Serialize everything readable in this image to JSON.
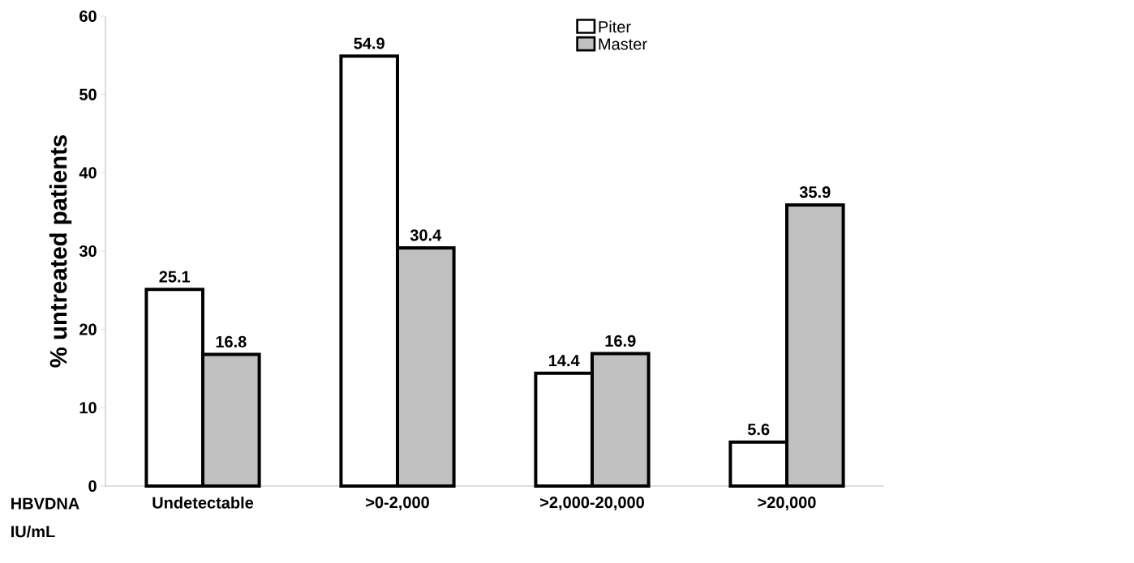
{
  "chart_data": {
    "type": "bar",
    "ylabel": "% untreated  patients",
    "xlabel": "HBVDNA IU/mL",
    "categories": [
      "Undetectable",
      ">0-2,000",
      ">2,000-20,000",
      ">20,000"
    ],
    "series": [
      {
        "name": "Piter",
        "color": "#ffffff",
        "values": [
          25.1,
          54.9,
          14.4,
          5.6
        ]
      },
      {
        "name": "Master",
        "color": "#c0c0c0",
        "values": [
          16.8,
          30.4,
          16.9,
          35.9
        ]
      }
    ],
    "ylim": [
      0,
      60
    ],
    "yticks": [
      0,
      10,
      20,
      30,
      40,
      50,
      60
    ],
    "data_labels": true,
    "legend": "top"
  }
}
